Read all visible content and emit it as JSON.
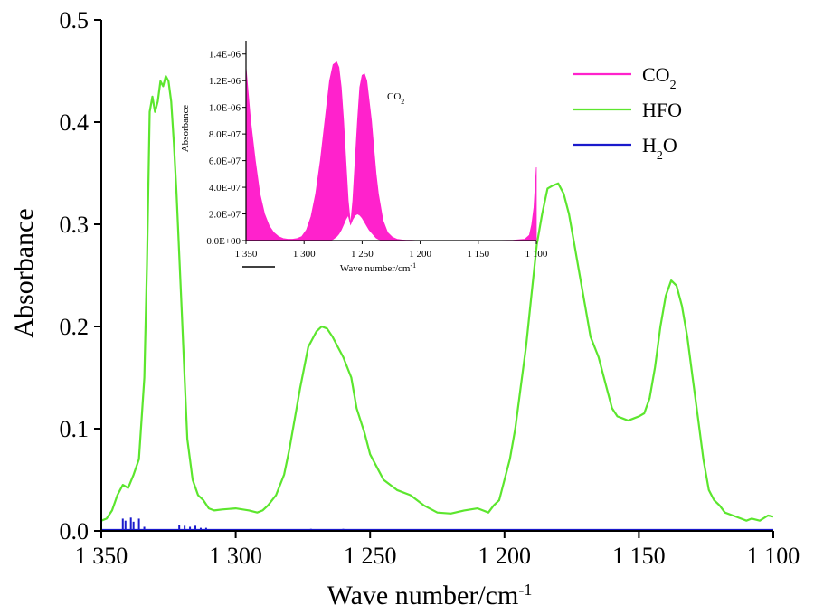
{
  "chart_data": [
    {
      "type": "line",
      "xlabel": "Wave number/cm",
      "xlabel_sup": "-1",
      "ylabel": "Absorbance",
      "xlim": [
        1350,
        1100
      ],
      "ylim": [
        0,
        0.5
      ],
      "x_ticks": [
        1350,
        1300,
        1250,
        1200,
        1150,
        1100
      ],
      "x_tick_labels": [
        "1 350",
        "1 300",
        "1 250",
        "1 200",
        "1 150",
        "1 100"
      ],
      "y_ticks": [
        0,
        0.1,
        0.2,
        0.3,
        0.4,
        0.5
      ],
      "y_tick_labels": [
        "0.0",
        "0.1",
        "0.2",
        "0.3",
        "0.4",
        "0.5"
      ],
      "legend": {
        "position": "top-right",
        "entries": [
          {
            "main": "CO",
            "sub": "2",
            "after": "",
            "color": "#ff22cc"
          },
          {
            "main": "HFO",
            "sub": "",
            "after": "",
            "color": "#5ce62e"
          },
          {
            "main": "H",
            "sub": "2",
            "after": "O",
            "color": "#1a1acc"
          }
        ]
      },
      "series": [
        {
          "name": "HFO",
          "color": "#5ce62e",
          "x": [
            1350,
            1348,
            1346,
            1344,
            1342,
            1340,
            1338,
            1336,
            1334,
            1333,
            1332,
            1331,
            1330,
            1329,
            1328,
            1327,
            1326,
            1325,
            1324,
            1323,
            1322,
            1321,
            1320,
            1319,
            1318,
            1316,
            1314,
            1312,
            1310,
            1308,
            1305,
            1300,
            1295,
            1292,
            1290,
            1288,
            1285,
            1282,
            1280,
            1276,
            1273,
            1270,
            1268,
            1266,
            1264,
            1262,
            1260,
            1257,
            1255,
            1252,
            1250,
            1247,
            1245,
            1240,
            1235,
            1230,
            1225,
            1220,
            1215,
            1210,
            1208,
            1206,
            1204,
            1202,
            1200,
            1198,
            1196,
            1194,
            1192,
            1190,
            1188,
            1186,
            1184,
            1182,
            1180,
            1178,
            1176,
            1174,
            1172,
            1170,
            1168,
            1165,
            1162,
            1160,
            1158,
            1156,
            1154,
            1152,
            1150,
            1148,
            1146,
            1144,
            1142,
            1140,
            1138,
            1136,
            1134,
            1132,
            1130,
            1128,
            1126,
            1124,
            1122,
            1120,
            1118,
            1115,
            1112,
            1110,
            1108,
            1105,
            1102,
            1100
          ],
          "y": [
            0.01,
            0.012,
            0.02,
            0.035,
            0.045,
            0.042,
            0.055,
            0.07,
            0.15,
            0.26,
            0.41,
            0.425,
            0.41,
            0.42,
            0.44,
            0.435,
            0.445,
            0.44,
            0.42,
            0.38,
            0.33,
            0.27,
            0.21,
            0.15,
            0.09,
            0.05,
            0.035,
            0.03,
            0.022,
            0.02,
            0.021,
            0.022,
            0.02,
            0.018,
            0.02,
            0.025,
            0.035,
            0.055,
            0.08,
            0.14,
            0.18,
            0.195,
            0.2,
            0.198,
            0.19,
            0.18,
            0.17,
            0.15,
            0.12,
            0.095,
            0.075,
            0.06,
            0.05,
            0.04,
            0.035,
            0.025,
            0.018,
            0.017,
            0.02,
            0.022,
            0.02,
            0.018,
            0.025,
            0.03,
            0.05,
            0.07,
            0.1,
            0.14,
            0.18,
            0.23,
            0.28,
            0.31,
            0.335,
            0.338,
            0.34,
            0.33,
            0.31,
            0.28,
            0.25,
            0.22,
            0.19,
            0.17,
            0.14,
            0.12,
            0.112,
            0.11,
            0.108,
            0.11,
            0.112,
            0.115,
            0.13,
            0.16,
            0.2,
            0.23,
            0.245,
            0.24,
            0.22,
            0.19,
            0.15,
            0.11,
            0.07,
            0.04,
            0.03,
            0.025,
            0.018,
            0.015,
            0.012,
            0.01,
            0.012,
            0.01,
            0.015,
            0.014
          ]
        },
        {
          "name": "H2O",
          "color": "#1a1acc",
          "baseline": 0.001,
          "spikes_x": [
            1342,
            1341,
            1339,
            1338,
            1336,
            1334,
            1321,
            1319,
            1317,
            1315,
            1313,
            1311,
            1272,
            1260
          ],
          "spikes_y": [
            0.012,
            0.01,
            0.013,
            0.009,
            0.012,
            0.004,
            0.006,
            0.005,
            0.004,
            0.005,
            0.003,
            0.003,
            0.002,
            0.002
          ]
        }
      ]
    },
    {
      "type": "area",
      "placement": "inset-top-left",
      "title": "CO",
      "title_sub": "2",
      "xlabel": "Wave number/cm",
      "xlabel_sup": "-1",
      "ylabel": "Absorbance",
      "xlim": [
        1350,
        1100
      ],
      "ylim": [
        0,
        1.5e-06
      ],
      "x_ticks": [
        1350,
        1300,
        1250,
        1200,
        1150,
        1100
      ],
      "x_tick_labels": [
        "1 350",
        "1 300",
        "1 250",
        "1 200",
        "1 150",
        "1 100"
      ],
      "y_ticks": [
        0,
        2e-07,
        4e-07,
        6e-07,
        8e-07,
        1e-06,
        1.2e-06,
        1.4e-06
      ],
      "y_tick_labels": [
        "0.0E+00",
        "2.0E-07",
        "4.0E-07",
        "6.0E-07",
        "8.0E-07",
        "1.0E-06",
        "1.2E-06",
        "1.4E-06"
      ],
      "series": [
        {
          "name": "CO2",
          "color": "#ff22cc",
          "x": [
            1350,
            1346,
            1342,
            1338,
            1334,
            1330,
            1326,
            1322,
            1318,
            1314,
            1310,
            1306,
            1302,
            1298,
            1294,
            1290,
            1286,
            1282,
            1278,
            1275,
            1272,
            1270,
            1268,
            1266,
            1264,
            1262,
            1260,
            1258,
            1256,
            1254,
            1252,
            1250,
            1248,
            1246,
            1244,
            1242,
            1240,
            1238,
            1236,
            1232,
            1228,
            1224,
            1220,
            1216,
            1212,
            1208,
            1204,
            1200,
            1190,
            1180,
            1170,
            1160,
            1150,
            1140,
            1130,
            1120,
            1110,
            1106,
            1104,
            1102,
            1101,
            1100
          ],
          "upper": [
            1.3e-06,
            9e-07,
            6e-07,
            3.5e-07,
            2e-07,
            1.1e-07,
            6e-08,
            3e-08,
            1.5e-08,
            1e-08,
            1e-08,
            1.5e-08,
            3e-08,
            8e-08,
            1.8e-07,
            3.5e-07,
            6e-07,
            9e-07,
            1.2e-06,
            1.32e-06,
            1.34e-06,
            1.3e-06,
            1.15e-06,
            9e-07,
            6e-07,
            3e-07,
            1.2e-07,
            3e-07,
            6e-07,
            9e-07,
            1.15e-06,
            1.24e-06,
            1.25e-06,
            1.2e-06,
            1.05e-06,
            9e-07,
            7e-07,
            5e-07,
            3.5e-07,
            1.5e-07,
            6e-08,
            2.5e-08,
            1e-08,
            5e-09,
            3e-09,
            2e-09,
            1e-09,
            1e-09,
            1e-09,
            1e-09,
            1e-09,
            1e-09,
            1e-09,
            1e-09,
            1e-09,
            2e-09,
            1e-08,
            4e-08,
            1.2e-07,
            2.5e-07,
            4e-07,
            5.5e-07
          ],
          "lower": [
            0,
            0,
            0,
            0,
            0,
            0,
            0,
            0,
            0,
            0,
            0,
            0,
            0,
            0,
            0,
            0,
            0,
            0,
            0,
            1e-08,
            3e-08,
            5e-08,
            8e-08,
            1.2e-07,
            1.6e-07,
            1.9e-07,
            1.2e-07,
            1.6e-07,
            1.9e-07,
            2e-07,
            1.9e-07,
            1.7e-07,
            1.4e-07,
            1.1e-07,
            8e-08,
            6e-08,
            4e-08,
            2e-08,
            1e-08,
            0,
            0,
            0,
            0,
            0,
            0,
            0,
            0,
            0,
            0,
            0,
            0,
            0,
            0,
            0,
            0,
            0,
            0,
            0,
            0,
            0,
            0,
            0
          ]
        }
      ]
    }
  ]
}
